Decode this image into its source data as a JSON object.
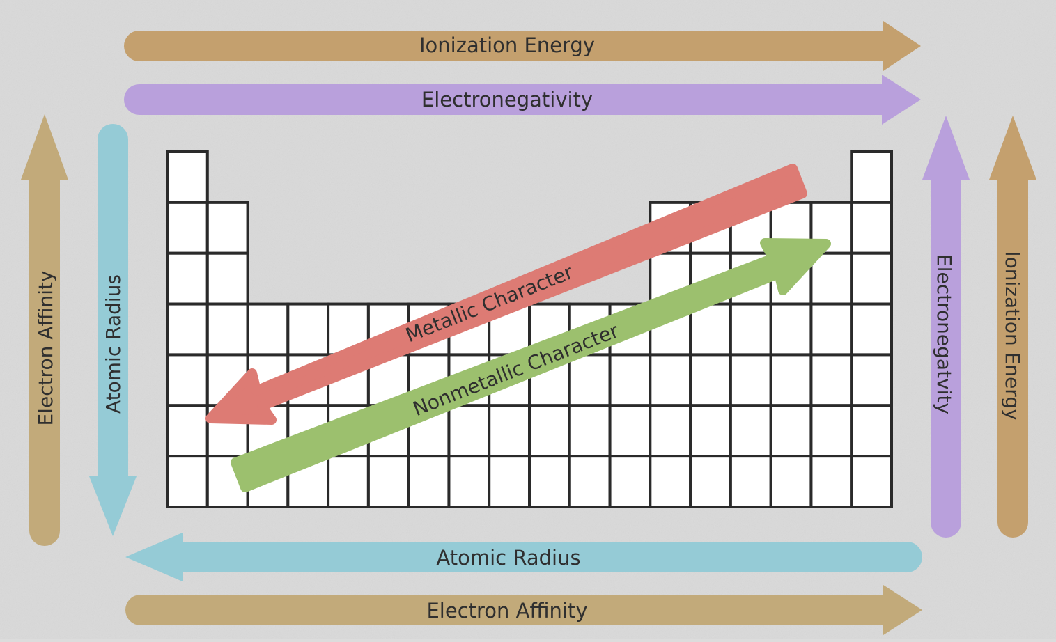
{
  "colors": {
    "background": "#dcdcdc",
    "ionization": "#c4a06e",
    "electronegativity": "#b9a0dc",
    "atomic_radius": "#95cbd6",
    "electron_affinity": "#c2aa7a",
    "metallic": "#dd7b74",
    "nonmetallic": "#9cc06e",
    "grid_line": "#2a2a2a",
    "cell": "#ffffff",
    "text": "#2f2f2f"
  },
  "arrows": {
    "top_ionization": "Ionization Energy",
    "top_electronegativity": "Electronegativity",
    "bottom_atomic_radius": "Atomic Radius",
    "bottom_electron_affinity": "Electron Affinity",
    "left_electron_affinity": "Electron Affinity",
    "left_atomic_radius": "Atomic Radius",
    "right_electronegativity": "Electronegatvity",
    "right_ionization": "Ionization Energy",
    "metallic": "Metallic Character",
    "nonmetallic": "Nonmetallic Character"
  },
  "table": {
    "columns": 18,
    "rows": 7
  }
}
